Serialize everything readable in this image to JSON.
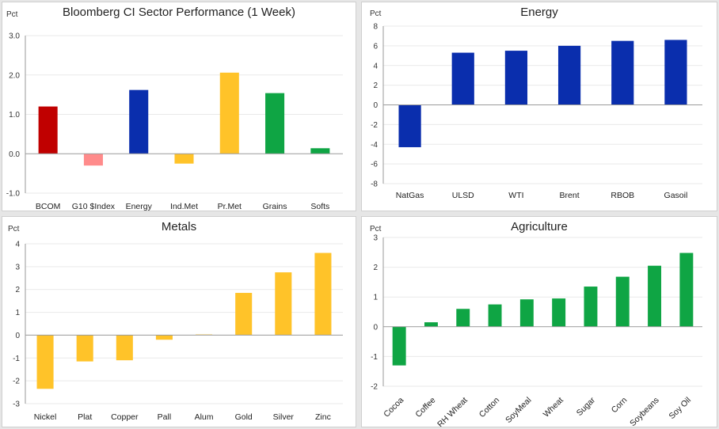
{
  "chart_data": [
    {
      "type": "bar",
      "title": "Bloomberg CI Sector Performance (1 Week)",
      "ylabel": "Pct",
      "ylim": [
        -1.0,
        3.0
      ],
      "yticks": [
        3.0,
        2.0,
        1.0,
        0.0,
        -1.0
      ],
      "tick_decimals": 1,
      "categories": [
        "BCOM",
        "G10 $Index",
        "Energy",
        "Ind.Met",
        "Pr.Met",
        "Grains",
        "Softs"
      ],
      "values": [
        1.2,
        -0.3,
        1.62,
        -0.25,
        2.06,
        1.54,
        0.14
      ],
      "colors": [
        "#c00000",
        "#ff8b8b",
        "#0a2ead",
        "#ffc329",
        "#ffc329",
        "#0fa544",
        "#0fa544"
      ],
      "rotate_labels": false
    },
    {
      "type": "bar",
      "title": "Energy",
      "ylabel": "Pct",
      "ylim": [
        -8,
        8
      ],
      "yticks": [
        8,
        6,
        4,
        2,
        0,
        -2,
        -4,
        -6,
        -8
      ],
      "tick_decimals": 0,
      "categories": [
        "NatGas",
        "ULSD",
        "WTI",
        "Brent",
        "RBOB",
        "Gasoil"
      ],
      "values": [
        -4.3,
        5.3,
        5.5,
        6.0,
        6.5,
        6.6
      ],
      "colors": [
        "#0a2ead",
        "#0a2ead",
        "#0a2ead",
        "#0a2ead",
        "#0a2ead",
        "#0a2ead"
      ],
      "rotate_labels": false
    },
    {
      "type": "bar",
      "title": "Metals",
      "ylabel": "Pct",
      "ylim": [
        -3,
        4
      ],
      "yticks": [
        4,
        3,
        2,
        1,
        0,
        -1,
        -2,
        -3
      ],
      "tick_decimals": 0,
      "categories": [
        "Nickel",
        "Plat",
        "Copper",
        "Pall",
        "Alum",
        "Gold",
        "Silver",
        "Zinc"
      ],
      "values": [
        -2.35,
        -1.15,
        -1.1,
        -0.2,
        0.03,
        1.85,
        2.75,
        3.6
      ],
      "colors": [
        "#ffc329",
        "#ffc329",
        "#ffc329",
        "#ffc329",
        "#ffc329",
        "#ffc329",
        "#ffc329",
        "#ffc329"
      ],
      "rotate_labels": false
    },
    {
      "type": "bar",
      "title": "Agriculture",
      "ylabel": "Pct",
      "ylim": [
        -2,
        3
      ],
      "yticks": [
        3,
        2,
        1,
        0,
        -1,
        -2
      ],
      "tick_decimals": 0,
      "categories": [
        "Cocoa",
        "Coffee",
        "RH Wheat",
        "Cotton",
        "SoyMeal",
        "Wheat",
        "Sugar",
        "Corn",
        "Soybeans",
        "Soy Oil"
      ],
      "values": [
        -1.3,
        0.15,
        0.6,
        0.75,
        0.92,
        0.95,
        1.35,
        1.68,
        2.05,
        2.48
      ],
      "colors": [
        "#0fa544",
        "#0fa544",
        "#0fa544",
        "#0fa544",
        "#0fa544",
        "#0fa544",
        "#0fa544",
        "#0fa544",
        "#0fa544",
        "#0fa544"
      ],
      "rotate_labels": true
    }
  ]
}
